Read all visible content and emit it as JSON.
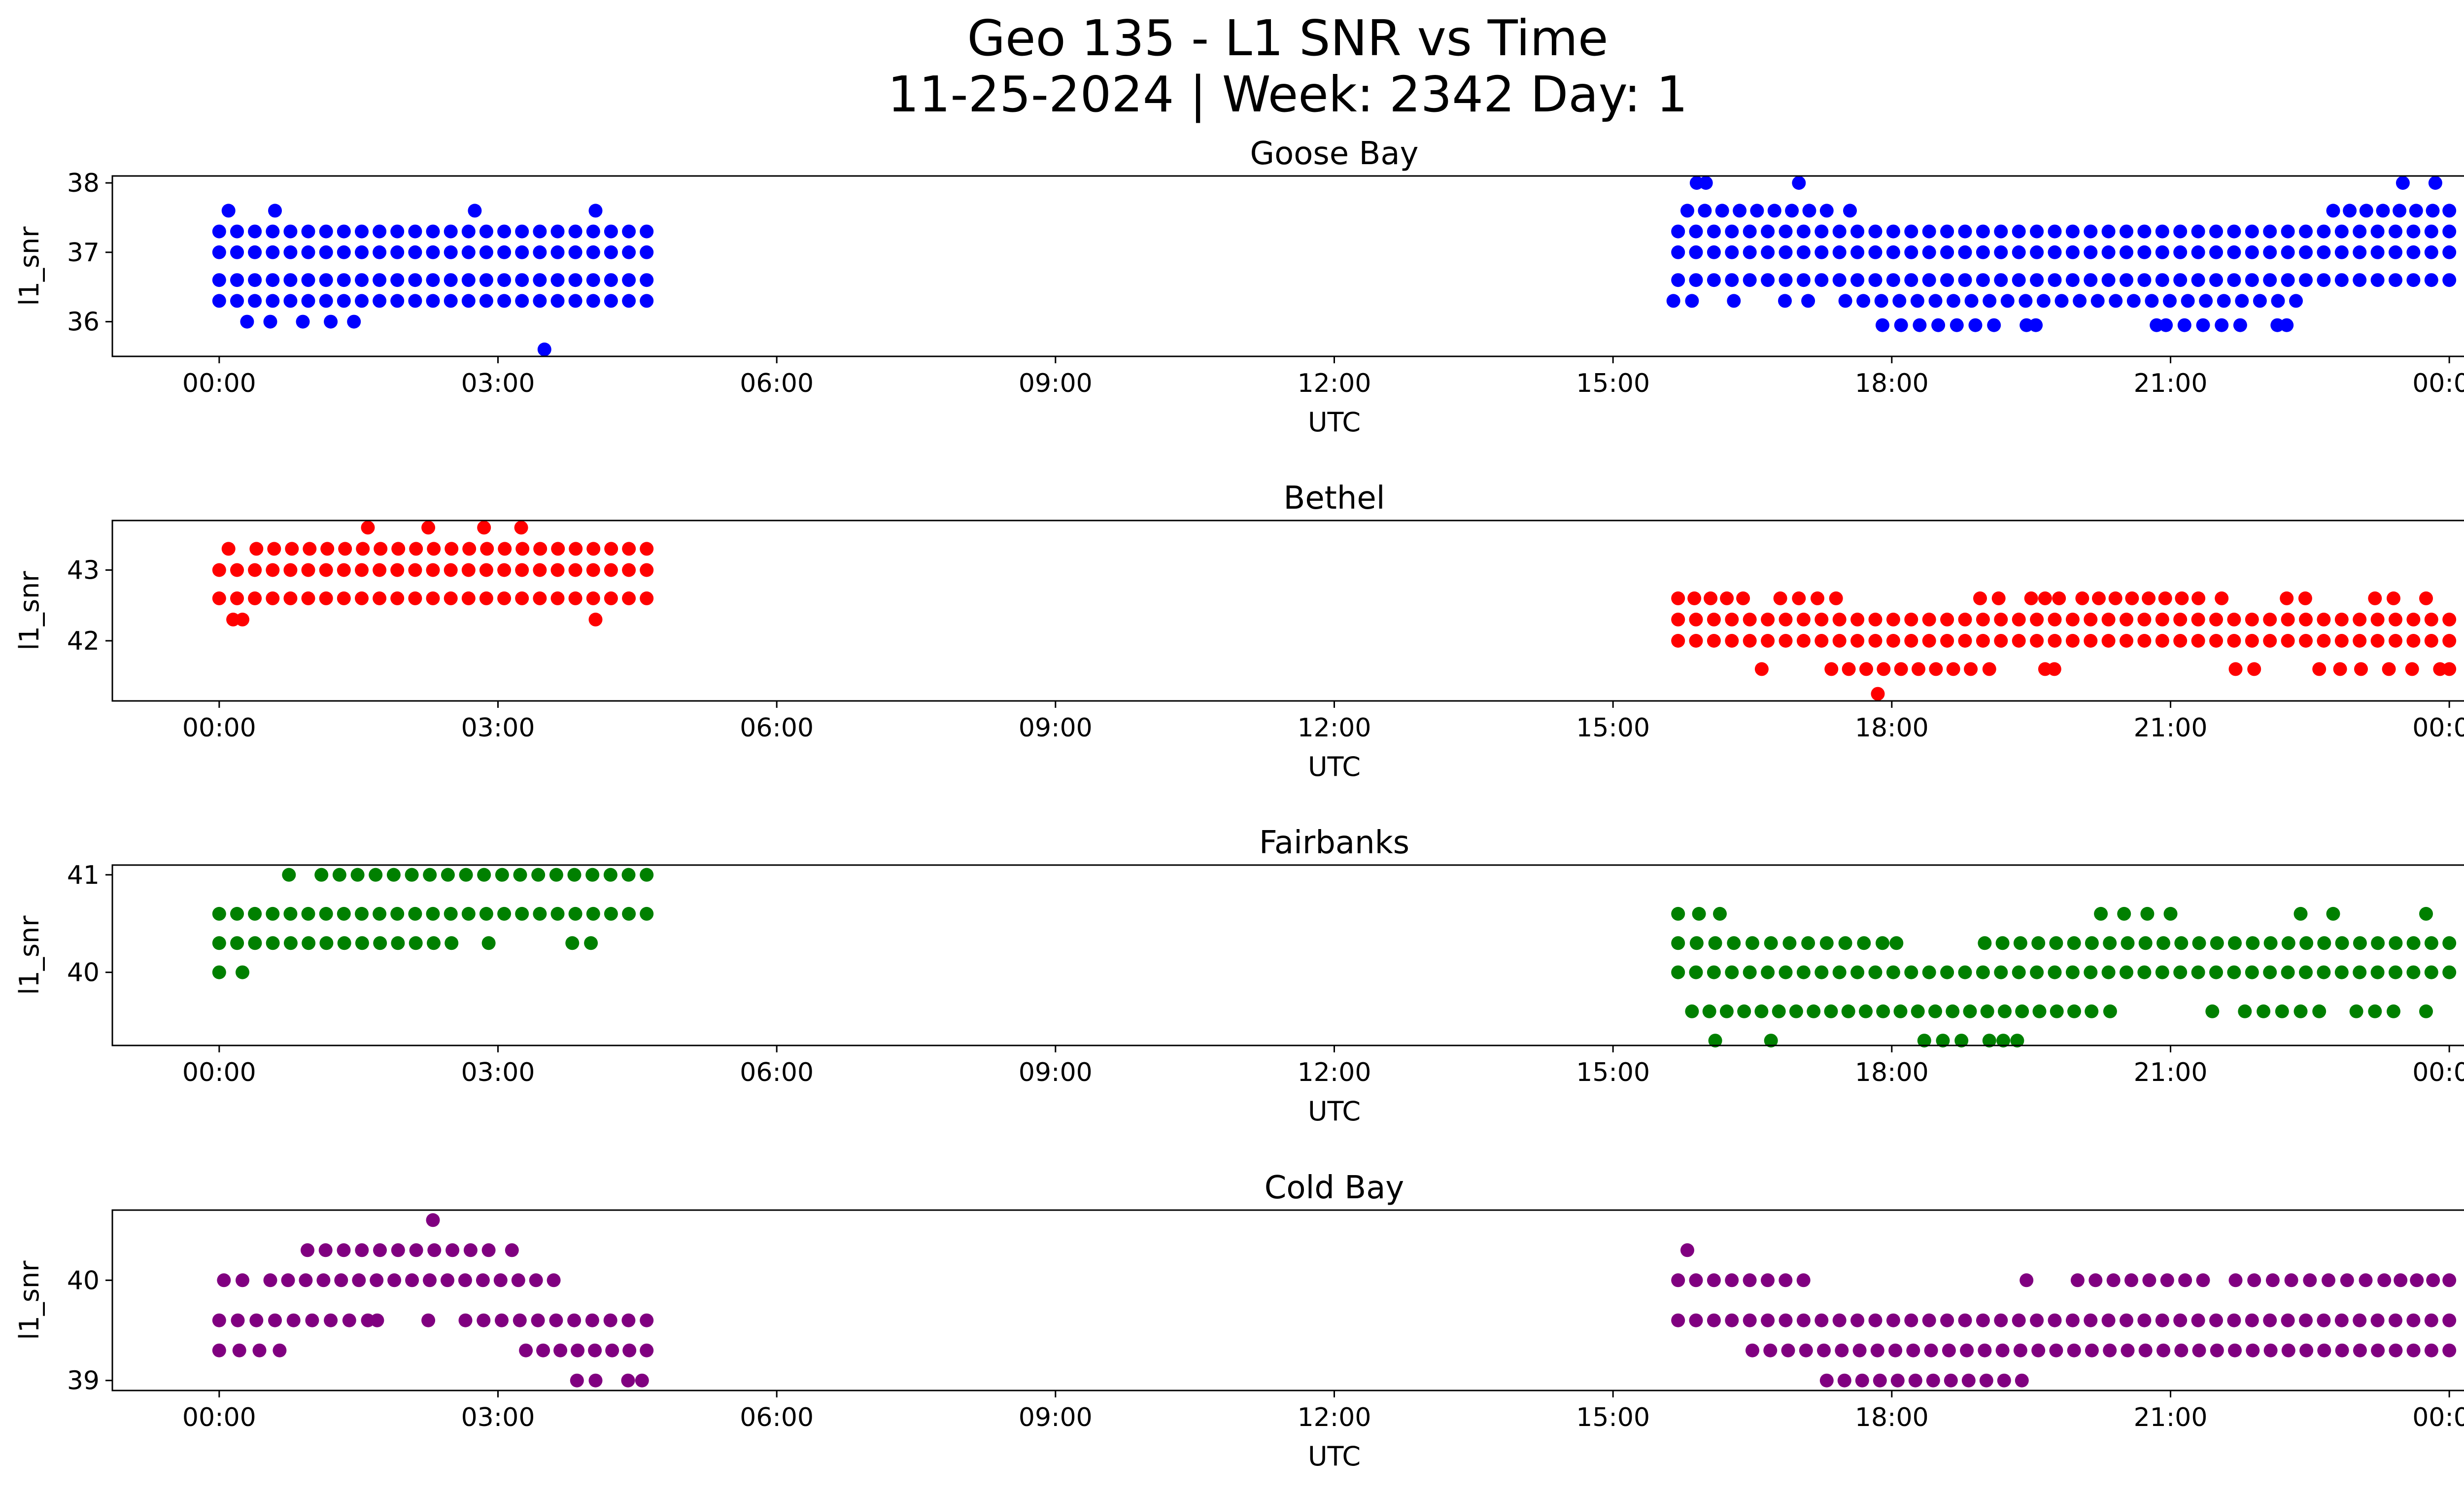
{
  "title": "Geo 135 - L1 SNR vs Time",
  "subtitle": "11-25-2024 | Week: 2342 Day: 1",
  "chart_data": [
    {
      "type": "scatter",
      "title": "Goose Bay",
      "xlabel": "UTC",
      "ylabel": "l1_snr",
      "color": "#0000ff",
      "xticks": [
        "00:00",
        "03:00",
        "06:00",
        "09:00",
        "12:00",
        "15:00",
        "18:00",
        "21:00",
        "00:00"
      ],
      "xlim_hours": [
        -1.15,
        25.15
      ],
      "yticks": [
        36,
        37,
        38
      ],
      "ylim": [
        35.5,
        38.1
      ],
      "series": [
        {
          "y": 36.0,
          "x": [
            0.3,
            0.55,
            0.9,
            1.2,
            1.45
          ]
        },
        {
          "y": 36.3,
          "x": [
            [
              0.0,
              4.6
            ]
          ]
        },
        {
          "y": 36.6,
          "x": [
            [
              0.0,
              4.6
            ]
          ]
        },
        {
          "y": 37.0,
          "x": [
            [
              0.0,
              4.6
            ]
          ]
        },
        {
          "y": 37.3,
          "x": [
            [
              0.0,
              4.6
            ]
          ]
        },
        {
          "y": 37.6,
          "x": [
            0.1,
            0.6,
            2.75,
            4.05
          ]
        },
        {
          "y": 35.6,
          "x": [
            3.5
          ]
        },
        {
          "y": 35.95,
          "x": [
            [
              17.9,
              19.1
            ],
            [
              19.45,
              19.55
            ],
            [
              20.85,
              20.95
            ],
            [
              21.15,
              21.75
            ],
            [
              22.15,
              22.25
            ]
          ]
        },
        {
          "y": 36.3,
          "x": [
            15.65,
            15.85,
            16.3,
            16.85,
            17.1,
            [
              17.5,
              22.35
            ]
          ]
        },
        {
          "y": 36.6,
          "x": [
            [
              15.7,
              24.0
            ]
          ]
        },
        {
          "y": 37.0,
          "x": [
            [
              15.7,
              24.0
            ]
          ]
        },
        {
          "y": 37.3,
          "x": [
            [
              15.7,
              24.0
            ]
          ]
        },
        {
          "y": 37.6,
          "x": [
            [
              15.8,
              17.3
            ],
            17.55,
            [
              22.75,
              24.0
            ]
          ]
        },
        {
          "y": 38.0,
          "x": [
            15.9,
            16.0,
            17.0,
            23.5,
            23.85
          ]
        }
      ]
    },
    {
      "type": "scatter",
      "title": "Bethel",
      "xlabel": "UTC",
      "ylabel": "l1_snr",
      "color": "#ff0000",
      "xticks": [
        "00:00",
        "03:00",
        "06:00",
        "09:00",
        "12:00",
        "15:00",
        "18:00",
        "21:00",
        "00:00"
      ],
      "xlim_hours": [
        -1.15,
        25.15
      ],
      "yticks": [
        42,
        43
      ],
      "ylim": [
        41.15,
        43.7
      ],
      "series": [
        {
          "y": 42.3,
          "x": [
            0.15,
            0.25,
            4.05
          ]
        },
        {
          "y": 42.6,
          "x": [
            [
              0.0,
              4.6
            ]
          ]
        },
        {
          "y": 43.0,
          "x": [
            [
              0.0,
              4.6
            ]
          ]
        },
        {
          "y": 43.3,
          "x": [
            0.1,
            [
              0.4,
              4.6
            ]
          ]
        },
        {
          "y": 43.6,
          "x": [
            1.6,
            2.25,
            2.85,
            3.25
          ]
        },
        {
          "y": 41.25,
          "x": [
            17.85
          ]
        },
        {
          "y": 41.6,
          "x": [
            16.6,
            [
              17.35,
              18.85
            ],
            19.05,
            19.65,
            19.75,
            [
              21.7,
              21.9
            ],
            [
              22.6,
              23.05
            ],
            [
              23.35,
              23.6
            ],
            [
              23.9,
              24.0
            ]
          ]
        },
        {
          "y": 42.0,
          "x": [
            [
              15.7,
              24.0
            ]
          ]
        },
        {
          "y": 42.3,
          "x": [
            [
              15.7,
              24.0
            ]
          ]
        },
        {
          "y": 42.6,
          "x": [
            [
              15.7,
              16.4
            ],
            [
              16.8,
              17.4
            ],
            [
              18.95,
              19.15
            ],
            [
              19.5,
              19.8
            ],
            [
              20.05,
              21.3
            ],
            21.55,
            [
              22.25,
              22.45
            ],
            [
              23.2,
              23.4
            ],
            23.75
          ]
        }
      ]
    },
    {
      "type": "scatter",
      "title": "Fairbanks",
      "xlabel": "UTC",
      "ylabel": "l1_snr",
      "color": "#008000",
      "xticks": [
        "00:00",
        "03:00",
        "06:00",
        "09:00",
        "12:00",
        "15:00",
        "18:00",
        "21:00",
        "00:00"
      ],
      "xlim_hours": [
        -1.15,
        25.15
      ],
      "yticks": [
        40,
        41
      ],
      "ylim": [
        39.25,
        41.1
      ],
      "series": [
        {
          "y": 40.0,
          "x": [
            [
              0.0,
              0.25
            ]
          ]
        },
        {
          "y": 40.3,
          "x": [
            [
              0.0,
              2.5
            ],
            2.9,
            [
              3.8,
              4.0
            ]
          ]
        },
        {
          "y": 40.6,
          "x": [
            [
              0.0,
              4.6
            ]
          ]
        },
        {
          "y": 41.0,
          "x": [
            0.75,
            [
              1.1,
              4.6
            ]
          ]
        },
        {
          "y": 39.3,
          "x": [
            16.1,
            16.7,
            [
              18.35,
              18.75
            ],
            [
              19.05,
              19.35
            ]
          ]
        },
        {
          "y": 39.6,
          "x": [
            [
              15.85,
              20.15
            ],
            20.35,
            21.45,
            [
              21.8,
              22.6
            ],
            [
              23.0,
              23.4
            ],
            23.75
          ]
        },
        {
          "y": 40.0,
          "x": [
            [
              15.7,
              24.0
            ]
          ]
        },
        {
          "y": 40.3,
          "x": [
            [
              15.7,
              17.7
            ],
            [
              17.9,
              18.05
            ],
            [
              19.0,
              24.0
            ]
          ]
        },
        {
          "y": 40.6,
          "x": [
            [
              15.7,
              16.15
            ],
            20.25,
            [
              20.5,
              20.75
            ],
            21.0,
            22.4,
            22.75,
            23.75
          ]
        }
      ]
    },
    {
      "type": "scatter",
      "title": "Cold Bay",
      "xlabel": "UTC",
      "ylabel": "l1_snr",
      "color": "#800080",
      "xticks": [
        "00:00",
        "03:00",
        "06:00",
        "09:00",
        "12:00",
        "15:00",
        "18:00",
        "21:00",
        "00:00"
      ],
      "xlim_hours": [
        -1.15,
        25.15
      ],
      "yticks": [
        39,
        40
      ],
      "ylim": [
        38.9,
        40.7
      ],
      "series": [
        {
          "y": 39.0,
          "x": [
            3.85,
            4.05,
            4.4,
            4.55
          ]
        },
        {
          "y": 39.3,
          "x": [
            [
              0.0,
              0.65
            ],
            [
              3.3,
              4.6
            ]
          ]
        },
        {
          "y": 39.6,
          "x": [
            [
              0.0,
              1.4
            ],
            [
              1.6,
              1.7
            ],
            2.25,
            [
              2.65,
              4.6
            ]
          ]
        },
        {
          "y": 40.0,
          "x": [
            [
              0.05,
              0.25
            ],
            [
              0.55,
              3.6
            ]
          ]
        },
        {
          "y": 40.3,
          "x": [
            [
              0.95,
              2.9
            ],
            3.15
          ]
        },
        {
          "y": 40.6,
          "x": [
            2.3
          ]
        },
        {
          "y": 39.0,
          "x": [
            [
              17.3,
              19.4
            ]
          ]
        },
        {
          "y": 39.3,
          "x": [
            [
              16.5,
              24.0
            ]
          ]
        },
        {
          "y": 39.6,
          "x": [
            [
              15.7,
              24.0
            ]
          ]
        },
        {
          "y": 40.0,
          "x": [
            [
              15.7,
              17.05
            ],
            19.45,
            [
              20.0,
              21.35
            ],
            [
              21.7,
              22.3
            ],
            22.5,
            [
              22.7,
              23.1
            ],
            [
              23.3,
              24.0
            ]
          ]
        },
        {
          "y": 40.3,
          "x": [
            15.8
          ]
        }
      ]
    }
  ]
}
